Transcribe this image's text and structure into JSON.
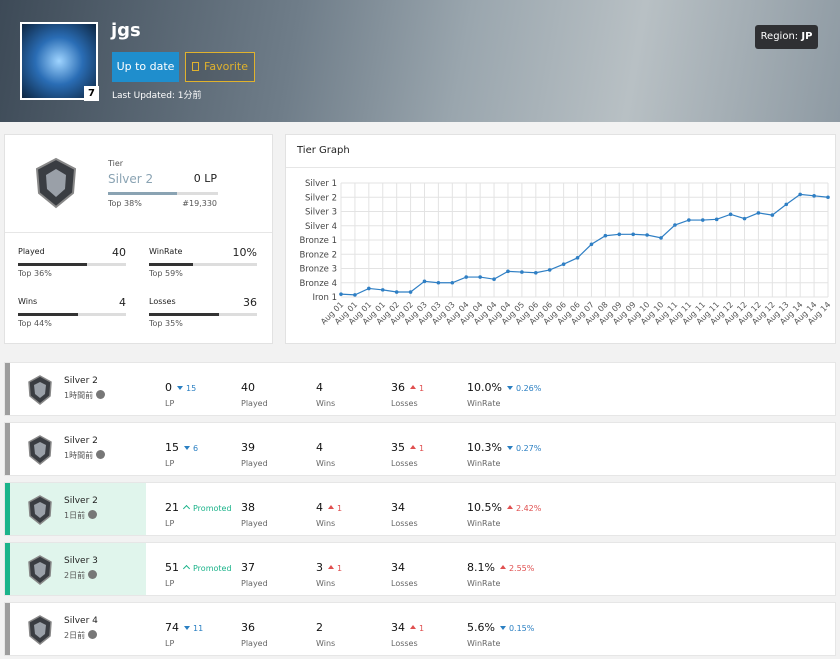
{
  "header": {
    "name": "jgs",
    "level": "7",
    "buttons": [
      "Up to date",
      "Favorite"
    ],
    "last_updated": "Last Updated: 1分前",
    "region_label": "Region:",
    "region": "JP"
  },
  "summary": {
    "tier_label": "Tier",
    "tier": "Silver 2",
    "lp": "0 LP",
    "bar": 63,
    "top": "Top 38%",
    "rank": "#19,330",
    "stats": [
      {
        "label": "Played",
        "value": "40",
        "top": "Top 36%",
        "bar": 64
      },
      {
        "label": "WinRate",
        "value": "10%",
        "top": "Top 59%",
        "bar": 41
      },
      {
        "label": "Wins",
        "value": "4",
        "top": "Top 44%",
        "bar": 56
      },
      {
        "label": "Losses",
        "value": "36",
        "top": "Top 35%",
        "bar": 65
      }
    ]
  },
  "chart_data": {
    "type": "line",
    "title": "Tier Graph",
    "color": "#2f7fc4",
    "grid": true,
    "categories": [
      "Aug 01",
      "Aug 01",
      "Aug 01",
      "Aug 01",
      "Aug 02",
      "Aug 02",
      "Aug 03",
      "Aug 03",
      "Aug 03",
      "Aug 04",
      "Aug 04",
      "Aug 04",
      "Aug 04",
      "Aug 05",
      "Aug 06",
      "Aug 06",
      "Aug 06",
      "Aug 06",
      "Aug 07",
      "Aug 08",
      "Aug 09",
      "Aug 09",
      "Aug 10",
      "Aug 10",
      "Aug 11",
      "Aug 11",
      "Aug 11",
      "Aug 11",
      "Aug 12",
      "Aug 12",
      "Aug 12",
      "Aug 12",
      "Aug 13",
      "Aug 14",
      "Aug 14",
      "Aug 14"
    ],
    "values": [
      0.2,
      0.15,
      0.6,
      0.5,
      0.35,
      0.35,
      1.1,
      1.0,
      1.0,
      1.4,
      1.4,
      1.25,
      1.8,
      1.75,
      1.7,
      1.9,
      2.3,
      2.75,
      3.7,
      4.3,
      4.4,
      4.4,
      4.35,
      4.15,
      5.05,
      5.4,
      5.4,
      5.45,
      5.8,
      5.5,
      5.9,
      5.75,
      6.5,
      7.2,
      7.1,
      7.0
    ],
    "ylim": [
      0,
      8
    ],
    "yticks": [
      {
        "value": 0,
        "label": "Iron 1"
      },
      {
        "value": 1,
        "label": "Bronze 4"
      },
      {
        "value": 2,
        "label": "Bronze 3"
      },
      {
        "value": 3,
        "label": "Bronze 2"
      },
      {
        "value": 4,
        "label": "Bronze 1"
      },
      {
        "value": 5,
        "label": "Silver 4"
      },
      {
        "value": 6,
        "label": "Silver 3"
      },
      {
        "value": 7,
        "label": "Silver 2"
      },
      {
        "value": 8,
        "label": "Silver 1"
      }
    ]
  },
  "history": {
    "columns": [
      "LP",
      "Played",
      "Wins",
      "Losses",
      "WinRate"
    ],
    "rows": [
      {
        "tier": "Silver 2",
        "time": "1時間前",
        "promoted": false,
        "cells": [
          {
            "value": "0",
            "change": "15",
            "direction": "down"
          },
          {
            "value": "40"
          },
          {
            "value": "4"
          },
          {
            "value": "36",
            "change": "1",
            "direction": "up"
          },
          {
            "value": "10.0%",
            "change": "0.26%",
            "direction": "down"
          }
        ]
      },
      {
        "tier": "Silver 2",
        "time": "1時間前",
        "promoted": false,
        "cells": [
          {
            "value": "15",
            "change": "6",
            "direction": "down"
          },
          {
            "value": "39"
          },
          {
            "value": "4"
          },
          {
            "value": "35",
            "change": "1",
            "direction": "up"
          },
          {
            "value": "10.3%",
            "change": "0.27%",
            "direction": "down"
          }
        ]
      },
      {
        "tier": "Silver 2",
        "time": "1日前",
        "promoted": true,
        "cells": [
          {
            "value": "21",
            "change": "Promoted",
            "direction": "promoted"
          },
          {
            "value": "38"
          },
          {
            "value": "4",
            "change": "1",
            "direction": "up"
          },
          {
            "value": "34"
          },
          {
            "value": "10.5%",
            "change": "2.42%",
            "direction": "up"
          }
        ]
      },
      {
        "tier": "Silver 3",
        "time": "2日前",
        "promoted": true,
        "cells": [
          {
            "value": "51",
            "change": "Promoted",
            "direction": "promoted"
          },
          {
            "value": "37"
          },
          {
            "value": "3",
            "change": "1",
            "direction": "up"
          },
          {
            "value": "34"
          },
          {
            "value": "8.1%",
            "change": "2.55%",
            "direction": "up"
          }
        ]
      },
      {
        "tier": "Silver 4",
        "time": "2日前",
        "promoted": false,
        "cells": [
          {
            "value": "74",
            "change": "11",
            "direction": "down"
          },
          {
            "value": "36"
          },
          {
            "value": "2"
          },
          {
            "value": "34",
            "change": "1",
            "direction": "up"
          },
          {
            "value": "5.6%",
            "change": "0.15%",
            "direction": "down"
          }
        ]
      }
    ]
  }
}
